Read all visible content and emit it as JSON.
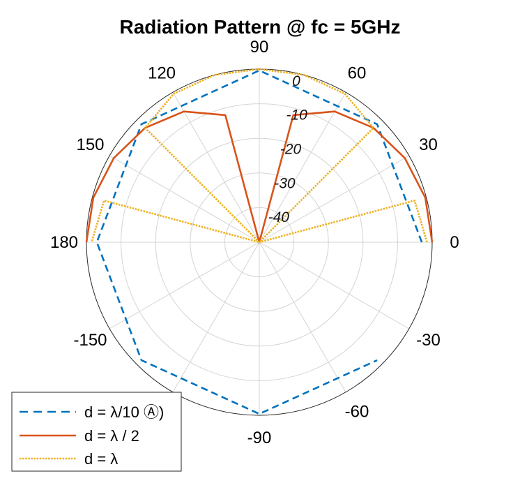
{
  "chart_data": {
    "type": "polar",
    "title": "Radiation Pattern @ fc = 5GHz",
    "theta_unit": "degrees",
    "theta_ticks": [
      0,
      30,
      60,
      90,
      120,
      150,
      180,
      -150,
      -120,
      -90,
      -60,
      -30
    ],
    "theta_tick_labels": [
      "0",
      "30",
      "60",
      "90",
      "120",
      "150",
      "180",
      "-150",
      "-120",
      "-90",
      "-60",
      "-30"
    ],
    "r_unit": "dB",
    "rlim": [
      -50,
      0
    ],
    "r_ticks": [
      0,
      -10,
      -20,
      -30,
      -40
    ],
    "r_tick_labels": [
      "0",
      "-10",
      "-20",
      "-30",
      "-40"
    ],
    "r_tick_label_angle_deg": 80,
    "grid": true,
    "legend_position": "bottom-left",
    "series": [
      {
        "name": "d = λ/10",
        "color": "#0072BD",
        "style": "dashed",
        "theta": [
          0,
          45,
          90,
          135,
          180,
          -135,
          -90,
          -45
        ],
        "r": [
          -3,
          -1.8,
          -0.4,
          -1.8,
          -3,
          -1.8,
          -0.4,
          -1.8
        ]
      },
      {
        "name": "d = λ / 2",
        "color": "#D95319",
        "style": "solid",
        "theta": [
          0,
          15,
          30,
          45,
          60,
          75,
          90,
          105,
          120,
          135,
          150,
          165,
          180
        ],
        "r": [
          0,
          -0.3,
          -1.4,
          -3.3,
          -6.4,
          -12,
          -50,
          -12,
          -6.4,
          -3.3,
          -1.4,
          -0.3,
          0
        ]
      },
      {
        "name": "d = λ",
        "color": "#EDB120",
        "style": "dotted",
        "theta": [
          0,
          15,
          30,
          45,
          60,
          75,
          90,
          105,
          120,
          135,
          150,
          165,
          180
        ],
        "r": [
          -1.5,
          -3.5,
          -50,
          -3.3,
          -0.5,
          0,
          0,
          0,
          -0.5,
          -3.3,
          -50,
          -3.5,
          -1.5
        ]
      }
    ]
  },
  "legend": {
    "items": [
      {
        "label": "d = λ/10 Ⓐ)"
      },
      {
        "label": "d = λ / 2"
      },
      {
        "label": "d = λ"
      }
    ]
  }
}
